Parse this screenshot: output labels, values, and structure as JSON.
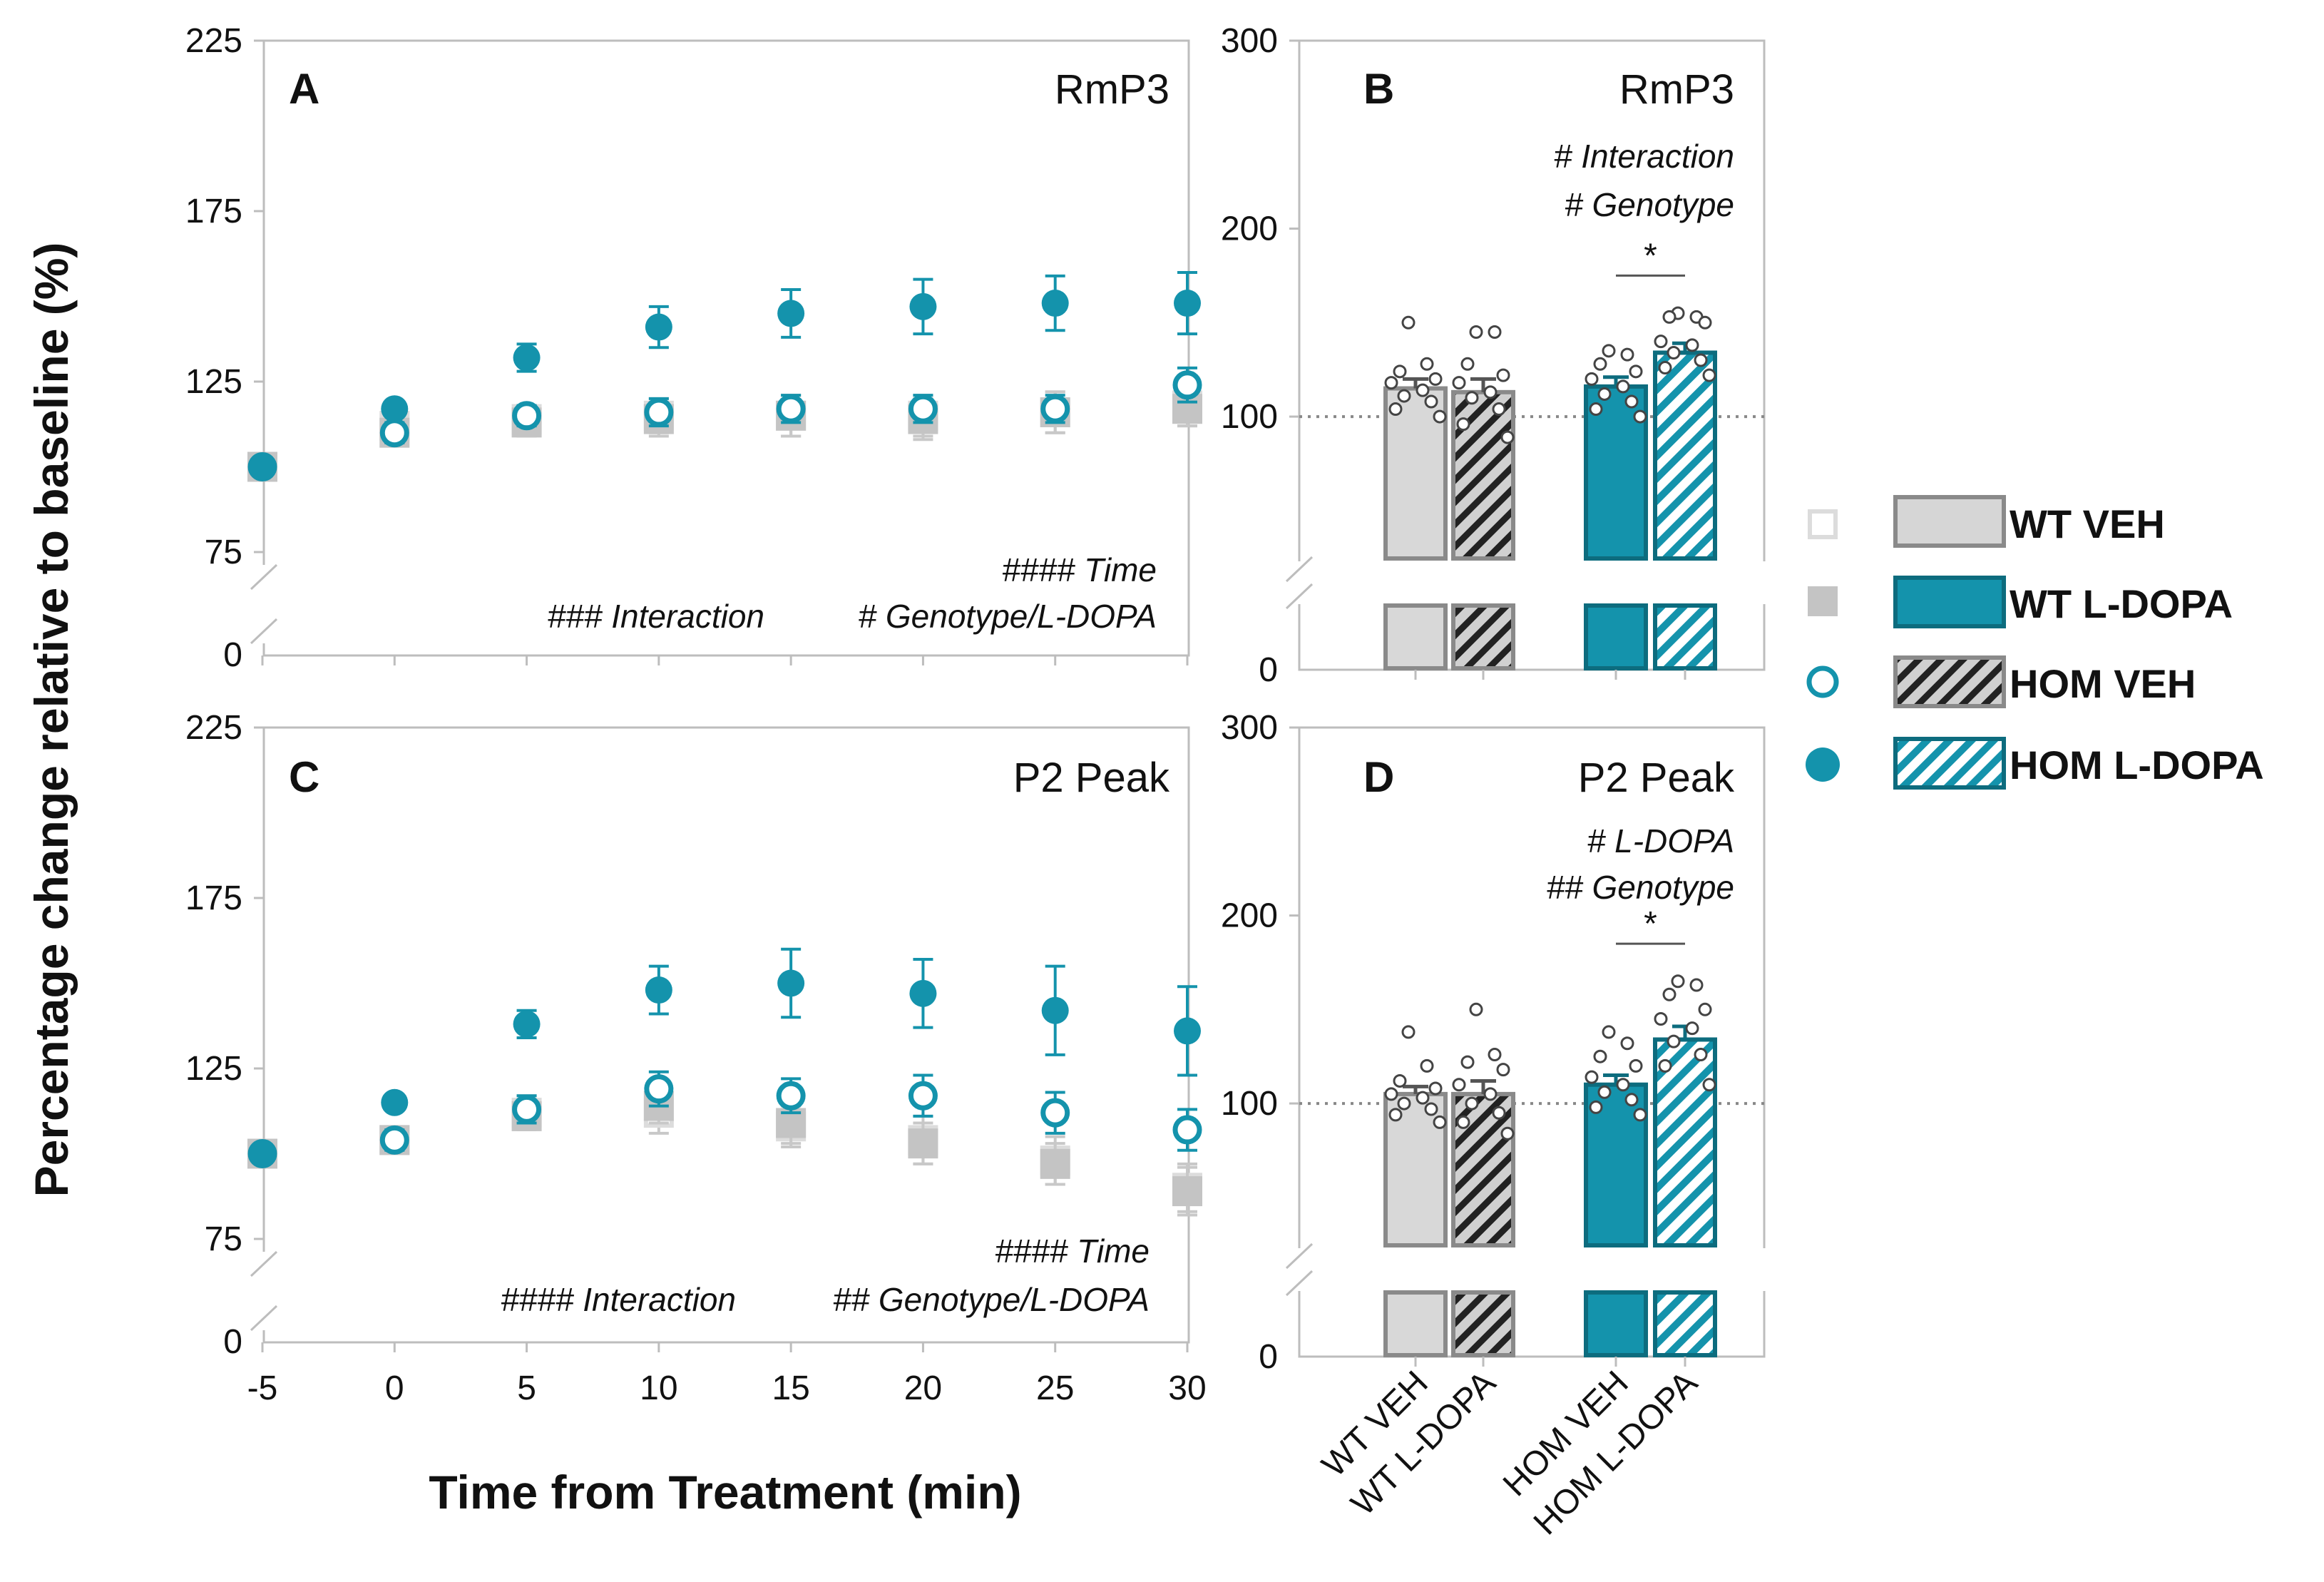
{
  "colors": {
    "teal": "#1493ac",
    "gray": "#bdbdbd",
    "light_gray": "#dcdcdc",
    "dark": "#222222",
    "hatch_gray": "#d0d0d0"
  },
  "y_axis_label": "Percentage change relative to baseline (%)",
  "x_axis_label": "Time from Treatment (min)",
  "legend": [
    {
      "label": "WT VEH",
      "symbol": "open-square",
      "bar": "wt-veh"
    },
    {
      "label": "WT L-DOPA",
      "symbol": "filled-square",
      "bar": "wt-ldopa"
    },
    {
      "label": "HOM VEH",
      "symbol": "open-circle",
      "bar": "hom-veh"
    },
    {
      "label": "HOM L-DOPA",
      "symbol": "filled-circle",
      "bar": "hom-ldopa"
    }
  ],
  "chart_data": [
    {
      "id": "A",
      "type": "scatter",
      "title": "RmP3",
      "x": [
        -5,
        0,
        5,
        10,
        15,
        20,
        25,
        30
      ],
      "x_ticks": [
        "-5",
        "0",
        "5",
        "10",
        "15",
        "20",
        "25",
        "30"
      ],
      "y_ticks": [
        "75",
        "125",
        "175",
        "225"
      ],
      "y_break_tick": "0",
      "ylim": [
        75,
        225
      ],
      "stats": [
        "#### Time",
        "### Interaction",
        "# Genotype/L-DOPA"
      ],
      "series": [
        {
          "name": "WT VEH",
          "symbol": "open-square",
          "values": [
            100,
            112,
            114,
            115,
            115,
            115,
            116,
            118
          ],
          "err": [
            3,
            3,
            4,
            5,
            6,
            6,
            6,
            6
          ]
        },
        {
          "name": "WT L-DOPA",
          "symbol": "filled-square",
          "values": [
            100,
            110,
            113,
            114,
            115,
            114,
            116,
            117
          ],
          "err": [
            3,
            3,
            4,
            5,
            6,
            6,
            6,
            5
          ]
        },
        {
          "name": "HOM VEH",
          "symbol": "open-circle",
          "values": [
            100,
            110,
            115,
            116,
            117,
            117,
            117,
            124
          ],
          "err": [
            2,
            3,
            3,
            4,
            4,
            4,
            4,
            5
          ]
        },
        {
          "name": "HOM L-DOPA",
          "symbol": "filled-circle",
          "values": [
            100,
            117,
            132,
            141,
            145,
            147,
            148,
            148
          ],
          "err": [
            2,
            2,
            4,
            6,
            7,
            8,
            8,
            9
          ]
        }
      ]
    },
    {
      "id": "B",
      "type": "bar",
      "title": "RmP3",
      "stats": [
        "# Interaction",
        "# Genotype"
      ],
      "categories": [
        "WT VEH",
        "WT L-DOPA",
        "HOM VEH",
        "HOM L-DOPA"
      ],
      "values": [
        115,
        113,
        116,
        134
      ],
      "err": [
        5,
        7,
        5,
        5
      ],
      "points": [
        [
          150,
          128,
          124,
          120,
          118,
          114,
          111,
          108,
          104,
          100
        ],
        [
          145,
          145,
          128,
          122,
          118,
          113,
          110,
          104,
          96,
          89
        ],
        [
          135,
          133,
          128,
          124,
          120,
          116,
          112,
          108,
          104,
          100
        ],
        [
          155,
          153,
          153,
          150,
          140,
          138,
          134,
          130,
          126,
          122
        ]
      ],
      "y_ticks": [
        "100",
        "200",
        "300"
      ],
      "y_break_tick": "0",
      "ylim": [
        0,
        300
      ],
      "reference_line": 100,
      "sig_label": "*"
    },
    {
      "id": "C",
      "type": "scatter",
      "title": "P2 Peak",
      "x": [
        -5,
        0,
        5,
        10,
        15,
        20,
        25,
        30
      ],
      "x_ticks": [
        "-5",
        "0",
        "5",
        "10",
        "15",
        "20",
        "25",
        "30"
      ],
      "y_ticks": [
        "75",
        "125",
        "175",
        "225"
      ],
      "y_break_tick": "0",
      "ylim": [
        75,
        225
      ],
      "stats": [
        "#### Time",
        "#### Interaction",
        "## Genotype/L-DOPA"
      ],
      "series": [
        {
          "name": "WT VEH",
          "symbol": "open-square",
          "values": [
            100,
            104,
            112,
            112,
            108,
            104,
            98,
            90
          ],
          "err": [
            3,
            3,
            5,
            6,
            6,
            7,
            7,
            7
          ]
        },
        {
          "name": "WT L-DOPA",
          "symbol": "filled-square",
          "values": [
            100,
            104,
            111,
            114,
            109,
            103,
            97,
            89
          ],
          "err": [
            3,
            3,
            4,
            5,
            6,
            6,
            6,
            7
          ]
        },
        {
          "name": "HOM VEH",
          "symbol": "open-circle",
          "values": [
            100,
            104,
            113,
            119,
            117,
            117,
            112,
            107
          ],
          "err": [
            2,
            3,
            4,
            5,
            5,
            6,
            6,
            6
          ]
        },
        {
          "name": "HOM L-DOPA",
          "symbol": "filled-circle",
          "values": [
            100,
            115,
            138,
            148,
            150,
            147,
            142,
            136
          ],
          "err": [
            2,
            2,
            4,
            7,
            10,
            10,
            13,
            13
          ]
        }
      ]
    },
    {
      "id": "D",
      "type": "bar",
      "title": "P2 Peak",
      "stats": [
        "# L-DOPA",
        "## Genotype"
      ],
      "categories": [
        "WT VEH",
        "WT L-DOPA",
        "HOM VEH",
        "HOM L-DOPA"
      ],
      "values": [
        105,
        105,
        110,
        134
      ],
      "err": [
        4,
        7,
        5,
        7
      ],
      "points": [
        [
          138,
          120,
          112,
          108,
          105,
          103,
          100,
          97,
          94,
          90
        ],
        [
          150,
          126,
          122,
          118,
          110,
          105,
          100,
          95,
          90,
          84
        ],
        [
          138,
          132,
          125,
          120,
          114,
          110,
          106,
          102,
          98,
          94
        ],
        [
          165,
          163,
          158,
          150,
          145,
          140,
          133,
          126,
          120,
          110
        ]
      ],
      "y_ticks": [
        "100",
        "200",
        "300"
      ],
      "y_break_tick": "0",
      "ylim": [
        0,
        300
      ],
      "reference_line": 100,
      "sig_label": "*"
    }
  ]
}
